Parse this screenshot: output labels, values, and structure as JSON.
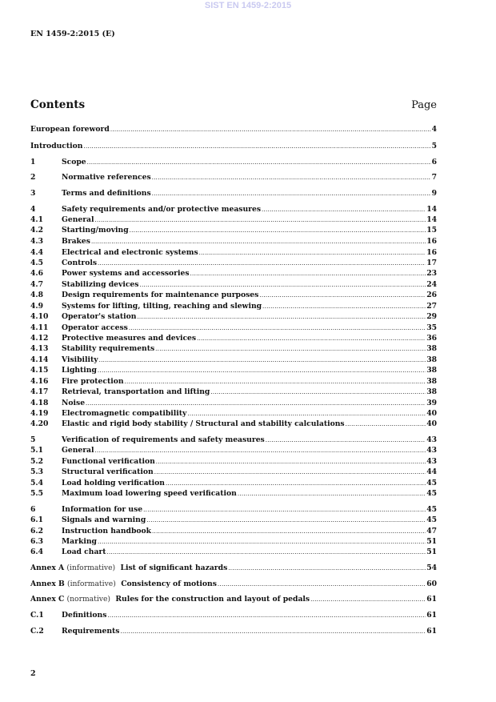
{
  "watermark": "SIST EN 1459-2:2015",
  "header": {
    "doc_id": "EN 1459-2:2015 (E)"
  },
  "contents": {
    "title": "Contents",
    "page_label": "Page"
  },
  "entries": [
    {
      "num": "",
      "title": "European foreword",
      "page": "4"
    },
    {
      "num": "",
      "title": "Introduction",
      "page": "5"
    },
    {
      "num": "1",
      "title": "Scope",
      "page": "6"
    },
    {
      "num": "2",
      "title": "Normative references",
      "page": "7"
    },
    {
      "num": "3",
      "title": "Terms and definitions",
      "page": "9"
    },
    {
      "num": "4",
      "title": "Safety requirements and/or protective measures",
      "page": "14"
    },
    {
      "num": "4.1",
      "title": "General",
      "page": "14"
    },
    {
      "num": "4.2",
      "title": "Starting/moving",
      "page": "15"
    },
    {
      "num": "4.3",
      "title": "Brakes",
      "page": "16"
    },
    {
      "num": "4.4",
      "title": "Electrical and electronic systems",
      "page": "16"
    },
    {
      "num": "4.5",
      "title": "Controls",
      "page": "17"
    },
    {
      "num": "4.6",
      "title": "Power systems and accessories",
      "page": "23"
    },
    {
      "num": "4.7",
      "title": "Stabilizing devices",
      "page": "24"
    },
    {
      "num": "4.8",
      "title": "Design requirements for maintenance purposes",
      "page": "26"
    },
    {
      "num": "4.9",
      "title": "Systems for lifting, tilting, reaching and slewing",
      "page": "27"
    },
    {
      "num": "4.10",
      "title": "Operator's station",
      "page": "29"
    },
    {
      "num": "4.11",
      "title": "Operator access",
      "page": "35"
    },
    {
      "num": "4.12",
      "title": "Protective measures and devices",
      "page": "36"
    },
    {
      "num": "4.13",
      "title": "Stability requirements",
      "page": "38"
    },
    {
      "num": "4.14",
      "title": "Visibility",
      "page": "38"
    },
    {
      "num": "4.15",
      "title": "Lighting",
      "page": "38"
    },
    {
      "num": "4.16",
      "title": "Fire protection",
      "page": "38"
    },
    {
      "num": "4.17",
      "title": "Retrieval, transportation and lifting",
      "page": "38"
    },
    {
      "num": "4.18",
      "title": "Noise",
      "page": "39"
    },
    {
      "num": "4.19",
      "title": "Electromagnetic compatibility",
      "page": "40"
    },
    {
      "num": "4.20",
      "title": "Elastic and rigid body stability / Structural and stability calculations",
      "page": "40"
    },
    {
      "num": "5",
      "title": "Verification of requirements and safety measures",
      "page": "43"
    },
    {
      "num": "5.1",
      "title": "General",
      "page": "43"
    },
    {
      "num": "5.2",
      "title": "Functional verification",
      "page": "43"
    },
    {
      "num": "5.3",
      "title": "Structural verification",
      "page": "44"
    },
    {
      "num": "5.4",
      "title": "Load holding verification",
      "page": "45"
    },
    {
      "num": "5.5",
      "title": "Maximum load lowering speed verification",
      "page": "45"
    },
    {
      "num": "6",
      "title": "Information for use",
      "page": "45"
    },
    {
      "num": "6.1",
      "title": "Signals and warning",
      "page": "45"
    },
    {
      "num": "6.2",
      "title": "Instruction handbook",
      "page": "47"
    },
    {
      "num": "6.3",
      "title": "Marking",
      "page": "51"
    },
    {
      "num": "6.4",
      "title": "Load chart",
      "page": "51"
    },
    {
      "annex": "Annex A",
      "note": "(informative)",
      "title": "List of significant hazards",
      "page": "54"
    },
    {
      "annex": "Annex B",
      "note": "(informative)",
      "title": "Consistency of motions",
      "page": "60"
    },
    {
      "annex": "Annex C",
      "note": "(normative)",
      "title": "Rules for the construction and layout of pedals",
      "page": "61"
    },
    {
      "num": "C.1",
      "title": "Definitions",
      "page": "61"
    },
    {
      "num": "C.2",
      "title": "Requirements",
      "page": "61"
    }
  ],
  "footer": {
    "page_number": "2"
  }
}
